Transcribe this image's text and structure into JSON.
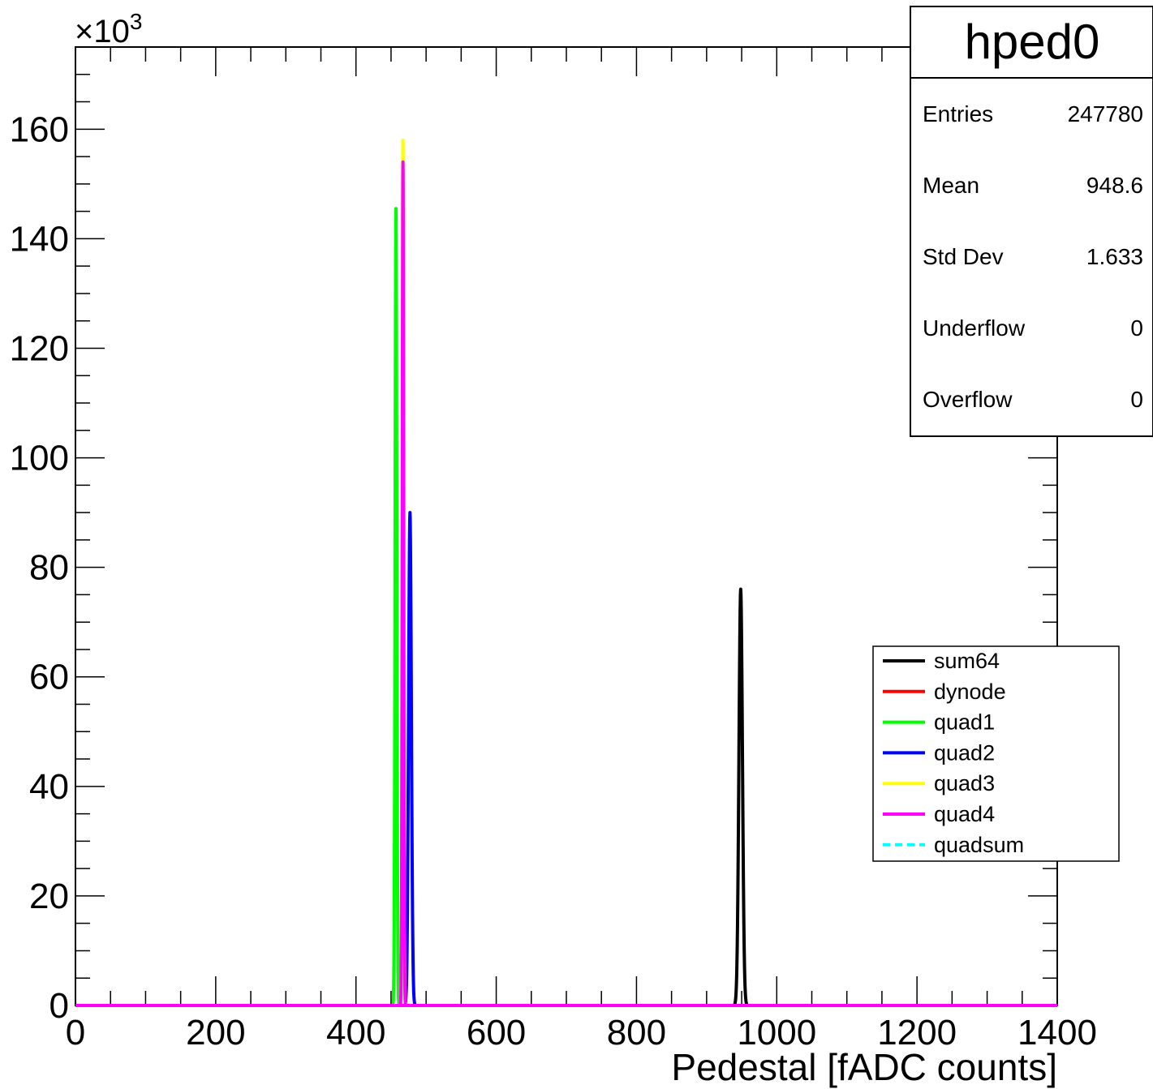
{
  "chart_data": {
    "type": "line",
    "title": "hped0",
    "xlabel": "Pedestal [fADC counts]",
    "ylabel": "",
    "y_multiplier": "×10",
    "y_multiplier_exp": "3",
    "xlim": [
      0,
      1400
    ],
    "ylim": [
      0,
      175
    ],
    "x_ticks": [
      0,
      200,
      400,
      600,
      800,
      1000,
      1200,
      1400
    ],
    "y_ticks": [
      0,
      20,
      40,
      60,
      80,
      100,
      120,
      140,
      160
    ],
    "grid": false,
    "legend_position": "right",
    "series": [
      {
        "name": "sum64",
        "color": "#000000",
        "dashed": false,
        "peak_x": 948.6,
        "peak_y": 76,
        "width": 2.5
      },
      {
        "name": "dynode",
        "color": "#ff0000",
        "dashed": false,
        "peak_x": null,
        "peak_y": 0,
        "width": 0
      },
      {
        "name": "quad1",
        "color": "#00ff00",
        "dashed": false,
        "peak_x": 457,
        "peak_y": 145.5,
        "width": 1.2
      },
      {
        "name": "quad2",
        "color": "#0000ff",
        "dashed": false,
        "peak_x": 477,
        "peak_y": 90,
        "width": 2.0
      },
      {
        "name": "quad3",
        "color": "#ffff00",
        "dashed": false,
        "peak_x": 467,
        "peak_y": 158,
        "width": 1.0
      },
      {
        "name": "quad4",
        "color": "#ff00ff",
        "dashed": false,
        "peak_x": 467,
        "peak_y": 154,
        "width": 1.0
      },
      {
        "name": "quadsum",
        "color": "#00ffff",
        "dashed": true,
        "peak_x": null,
        "peak_y": 0,
        "width": 0
      }
    ],
    "stats": {
      "rows": [
        {
          "label": "Entries",
          "value": "247780"
        },
        {
          "label": "Mean",
          "value": "948.6"
        },
        {
          "label": "Std Dev",
          "value": "1.633"
        },
        {
          "label": "Underflow",
          "value": "0"
        },
        {
          "label": "Overflow",
          "value": "0"
        }
      ]
    }
  }
}
